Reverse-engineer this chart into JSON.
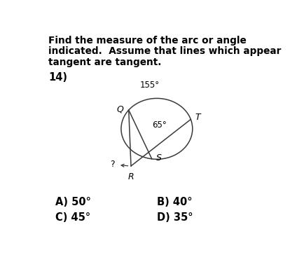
{
  "title_line1": "Find the measure of the arc or angle",
  "title_line2": "indicated.  Assume that lines which appear",
  "title_line3": "tangent are tangent.",
  "problem_number": "14)",
  "arc_label_155": "155°",
  "arc_label_65": "65°",
  "point_T": "T",
  "point_Q": "Q",
  "point_S": "S",
  "point_R": "R",
  "question_mark": "?",
  "answer_A": "A) 50°",
  "answer_B": "B) 40°",
  "answer_C": "C) 45°",
  "answer_D": "D) 35°",
  "bg_color": "#ffffff",
  "text_color": "#000000",
  "line_color": "#3a3a3a"
}
